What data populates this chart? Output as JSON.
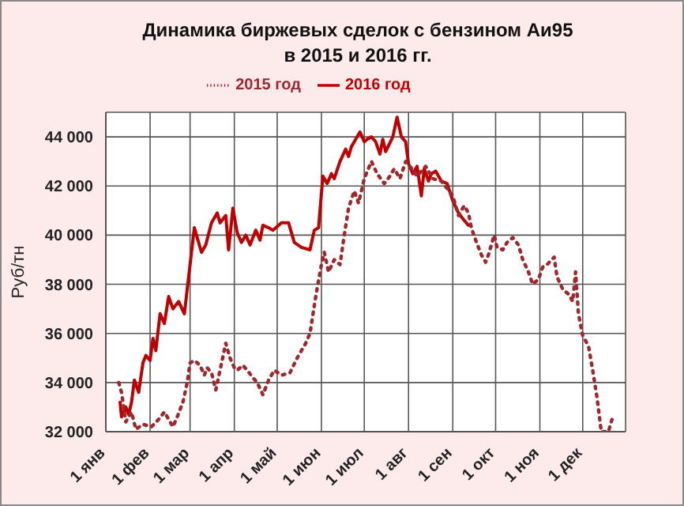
{
  "chart_data": {
    "type": "line",
    "title": "Динамика биржевых сделок с бензином Аи95\nв 2015 и 2016 гг.",
    "ylabel": "Руб/тн",
    "legend": "top",
    "grid": true,
    "xlim": [
      "--01-01",
      "--12-31"
    ],
    "xticks": [
      {
        "value": "--01-01",
        "label": "1 янв"
      },
      {
        "value": "--02-01",
        "label": "1 фев"
      },
      {
        "value": "--03-01",
        "label": "1 мар"
      },
      {
        "value": "--04-01",
        "label": "1 апр"
      },
      {
        "value": "--05-01",
        "label": "1 май"
      },
      {
        "value": "--06-01",
        "label": "1 июн"
      },
      {
        "value": "--07-01",
        "label": "1 июл"
      },
      {
        "value": "--08-01",
        "label": "1 авг"
      },
      {
        "value": "--09-01",
        "label": "1 сен"
      },
      {
        "value": "--10-01",
        "label": "1 окт"
      },
      {
        "value": "--11-01",
        "label": "1 ноя"
      },
      {
        "value": "--12-01",
        "label": "1 дек"
      }
    ],
    "ylim": [
      32000,
      45000
    ],
    "yticks": [
      {
        "value": 32000,
        "label": "32 000"
      },
      {
        "value": 34000,
        "label": "34 000"
      },
      {
        "value": 36000,
        "label": "36 000"
      },
      {
        "value": 38000,
        "label": "38 000"
      },
      {
        "value": 40000,
        "label": "40 000"
      },
      {
        "value": 42000,
        "label": "42 000"
      },
      {
        "value": 44000,
        "label": "44 000"
      }
    ],
    "series": [
      {
        "name": "2016 год",
        "color": "#c00000",
        "line_style": "solid",
        "x": [
          "--01-11",
          "--01-12",
          "--01-15",
          "--01-17",
          "--01-19",
          "--01-21",
          "--01-24",
          "--01-27",
          "--01-29",
          "--02-01",
          "--02-03",
          "--02-05",
          "--02-08",
          "--02-11",
          "--02-14",
          "--02-17",
          "--02-21",
          "--02-25",
          "--02-28",
          "--03-04",
          "--03-06",
          "--03-09",
          "--03-12",
          "--03-16",
          "--03-20",
          "--03-22",
          "--03-26",
          "--03-28",
          "--03-31",
          "--04-03",
          "--04-06",
          "--04-09",
          "--04-12",
          "--04-16",
          "--04-19",
          "--04-21",
          "--04-25",
          "--04-28",
          "--05-04",
          "--05-09",
          "--05-13",
          "--05-18",
          "--05-24",
          "--05-27",
          "--05-30",
          "--06-02",
          "--06-05",
          "--06-08",
          "--06-10",
          "--06-14",
          "--06-18",
          "--06-20",
          "--06-22",
          "--06-25",
          "--06-28",
          "--07-01",
          "--07-03",
          "--07-06",
          "--07-09",
          "--07-12",
          "--07-14",
          "--07-16",
          "--07-21",
          "--07-24",
          "--07-27",
          "--07-30",
          "--08-01",
          "--08-04",
          "--08-07",
          "--08-10",
          "--08-12",
          "--08-15",
          "--08-17",
          "--08-20",
          "--08-24",
          "--08-28",
          "--09-01",
          "--09-05",
          "--09-09",
          "--09-12"
        ],
        "values": [
          33200,
          32600,
          33000,
          32700,
          33200,
          34100,
          33600,
          34800,
          35100,
          34900,
          35800,
          35300,
          36800,
          36400,
          37500,
          37000,
          37300,
          36800,
          38300,
          40300,
          39900,
          39300,
          39600,
          40500,
          40900,
          40500,
          40800,
          39400,
          41100,
          40100,
          39700,
          40000,
          39600,
          40200,
          39800,
          40400,
          40300,
          40200,
          40500,
          40500,
          39700,
          39500,
          39400,
          40200,
          40300,
          42400,
          42100,
          42500,
          42300,
          43000,
          43500,
          43200,
          43600,
          43900,
          44200,
          43800,
          43900,
          44000,
          43800,
          43300,
          43900,
          43400,
          44000,
          44800,
          44000,
          43800,
          42900,
          42500,
          42800,
          41600,
          42700,
          42200,
          42500,
          42600,
          42200,
          42100,
          41400,
          40900,
          40600,
          40400
        ]
      },
      {
        "name": "2015 год",
        "color": "#a0282d",
        "line_style": "dotted",
        "x": [
          "--01-10",
          "--01-12",
          "--01-15",
          "--01-19",
          "--01-22",
          "--01-27",
          "--02-02",
          "--02-07",
          "--02-11",
          "--02-14",
          "--02-17",
          "--02-20",
          "--02-24",
          "--02-27",
          "--03-01",
          "--03-04",
          "--03-08",
          "--03-11",
          "--03-13",
          "--03-16",
          "--03-19",
          "--03-22",
          "--03-26",
          "--03-29",
          "--04-01",
          "--04-03",
          "--04-07",
          "--04-10",
          "--04-14",
          "--04-17",
          "--04-21",
          "--04-25",
          "--04-29",
          "--05-04",
          "--05-10",
          "--05-15",
          "--05-21",
          "--05-24",
          "--05-28",
          "--06-01",
          "--06-03",
          "--06-06",
          "--06-10",
          "--06-14",
          "--06-17",
          "--06-20",
          "--06-24",
          "--06-27",
          "--07-01",
          "--07-06",
          "--07-10",
          "--07-15",
          "--07-19",
          "--07-22",
          "--07-26",
          "--07-30",
          "--08-02",
          "--08-07",
          "--08-13",
          "--08-18",
          "--08-24",
          "--09-01",
          "--09-05",
          "--09-09",
          "--09-12",
          "--09-14",
          "--09-17",
          "--09-21",
          "--09-24",
          "--09-26",
          "--09-30",
          "--10-02",
          "--10-06",
          "--10-09",
          "--10-13",
          "--10-17",
          "--10-20",
          "--10-24",
          "--10-27",
          "--10-31",
          "--11-03",
          "--11-06",
          "--11-11",
          "--11-13",
          "--11-17",
          "--11-21",
          "--11-24",
          "--11-26",
          "--11-28",
          "--12-01",
          "--12-05",
          "--12-08",
          "--12-11",
          "--12-14",
          "--12-19",
          "--12-22"
        ],
        "values": [
          34000,
          33600,
          32400,
          32800,
          32100,
          32300,
          32200,
          32500,
          32800,
          32500,
          32200,
          32600,
          33200,
          34000,
          34800,
          34900,
          34700,
          34300,
          34600,
          34400,
          33700,
          34500,
          35600,
          35000,
          34600,
          34500,
          34700,
          34500,
          34200,
          34000,
          33500,
          34100,
          34500,
          34300,
          34400,
          35000,
          35600,
          36000,
          37500,
          38800,
          39300,
          38500,
          39000,
          38800,
          40000,
          41100,
          41800,
          41300,
          42300,
          43000,
          42500,
          42100,
          42400,
          42700,
          42300,
          43000,
          42800,
          42400,
          42800,
          42300,
          42200,
          41600,
          40800,
          41200,
          40900,
          40300,
          39800,
          39200,
          38900,
          39200,
          40000,
          39500,
          39400,
          39700,
          39900,
          39600,
          39000,
          38500,
          38000,
          38200,
          38700,
          38800,
          39100,
          38300,
          37800,
          37600,
          37300,
          38500,
          36800,
          35900,
          35500,
          34500,
          33400,
          32000,
          32000,
          32600
        ]
      }
    ]
  }
}
